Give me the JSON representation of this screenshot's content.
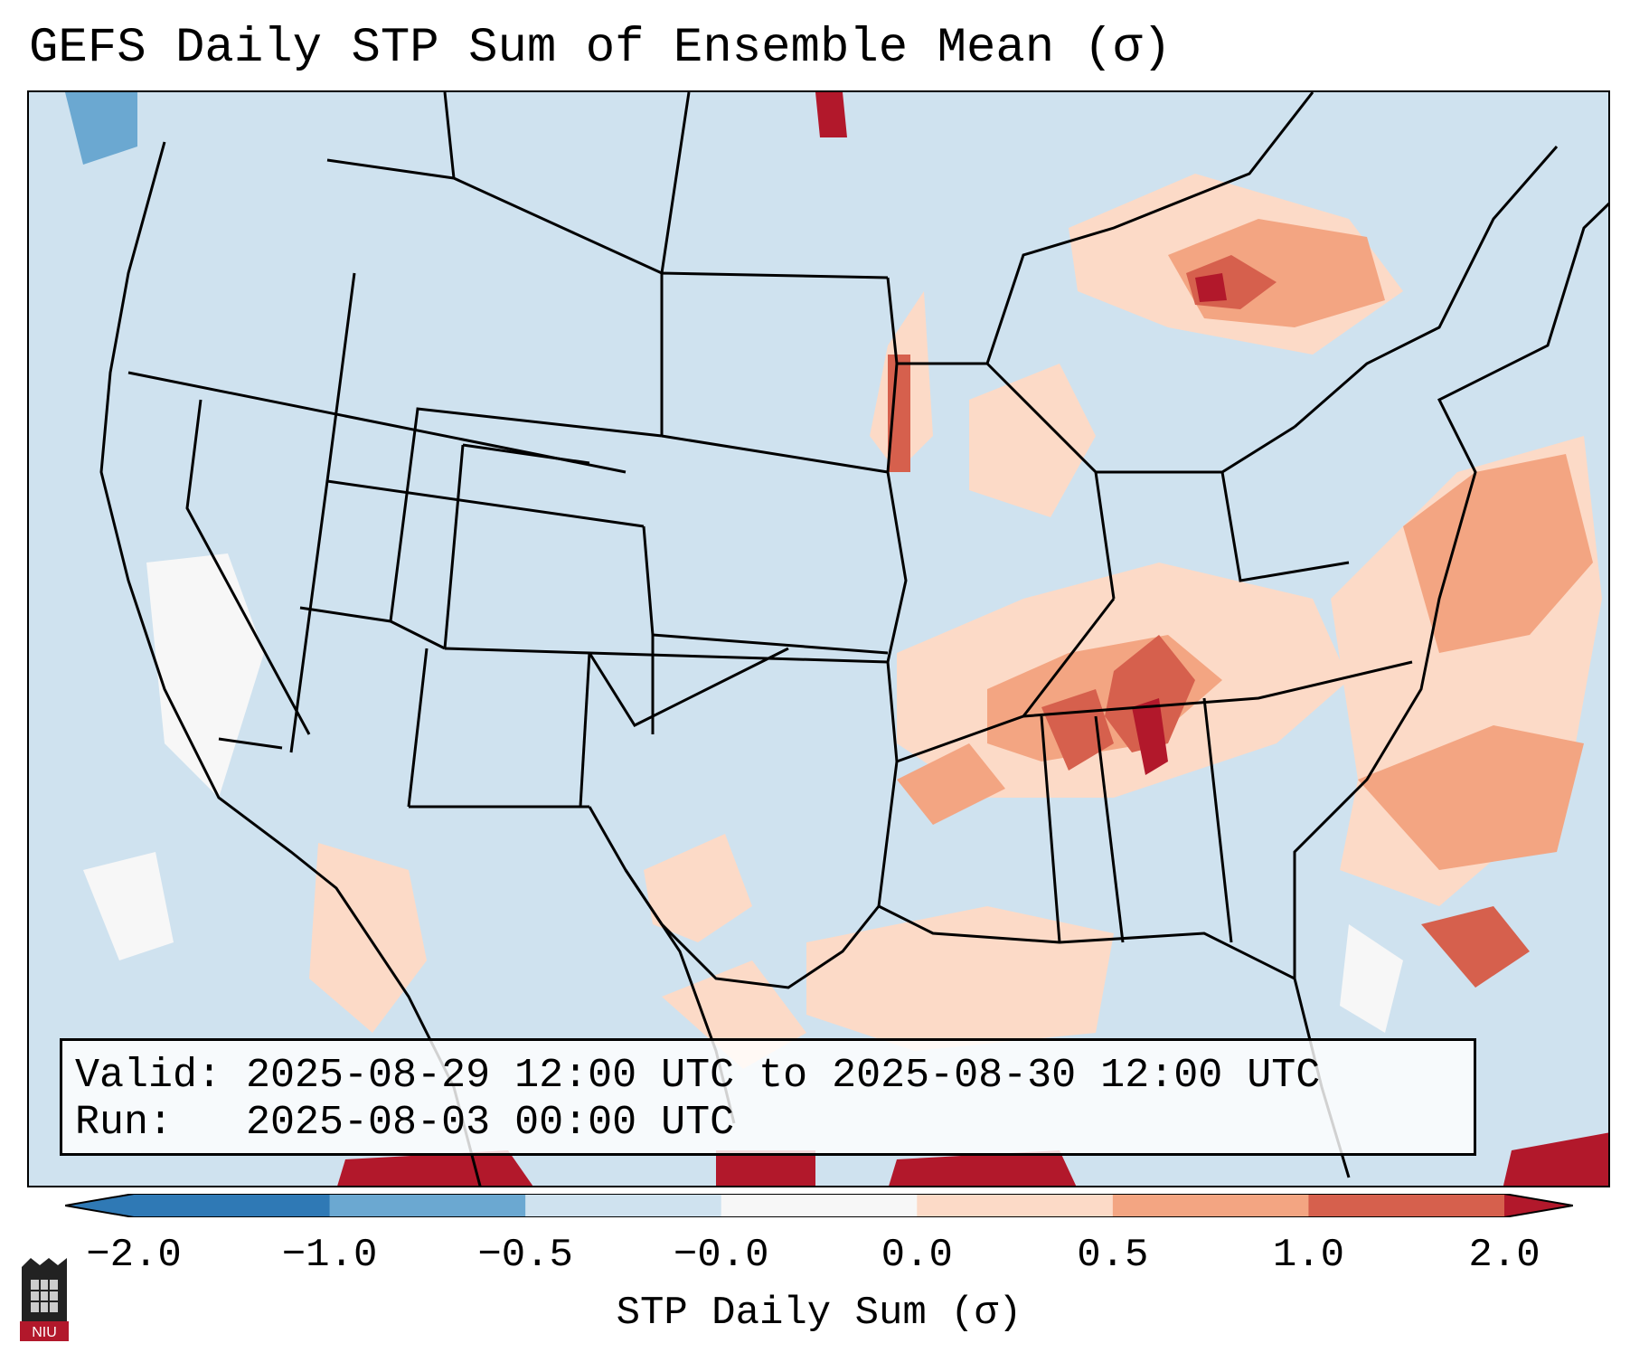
{
  "title": "GEFS Daily STP Sum of Ensemble Mean (σ)",
  "info": {
    "valid": "Valid: 2025-08-29 12:00 UTC to 2025-08-30 12:00 UTC",
    "run": "Run:   2025-08-03 00:00 UTC"
  },
  "colorbar": {
    "label": "STP Daily Sum (σ)",
    "ticks": [
      "−2.0",
      "−1.0",
      "−0.5",
      "−0.0",
      "0.0",
      "0.5",
      "1.0",
      "2.0"
    ],
    "colors": [
      "#2f79b5",
      "#6ba8d1",
      "#cfe2ef",
      "#f7f7f7",
      "#fcdac7",
      "#f3a582",
      "#d6604d",
      "#b2182b"
    ]
  },
  "logo": {
    "text": "NIU"
  },
  "colors": {
    "ocean_background": "#cfe2ef",
    "light_positive": "#fcdac7",
    "mid_positive": "#f3a582",
    "strong_positive": "#d6604d",
    "max_positive": "#b2182b"
  }
}
